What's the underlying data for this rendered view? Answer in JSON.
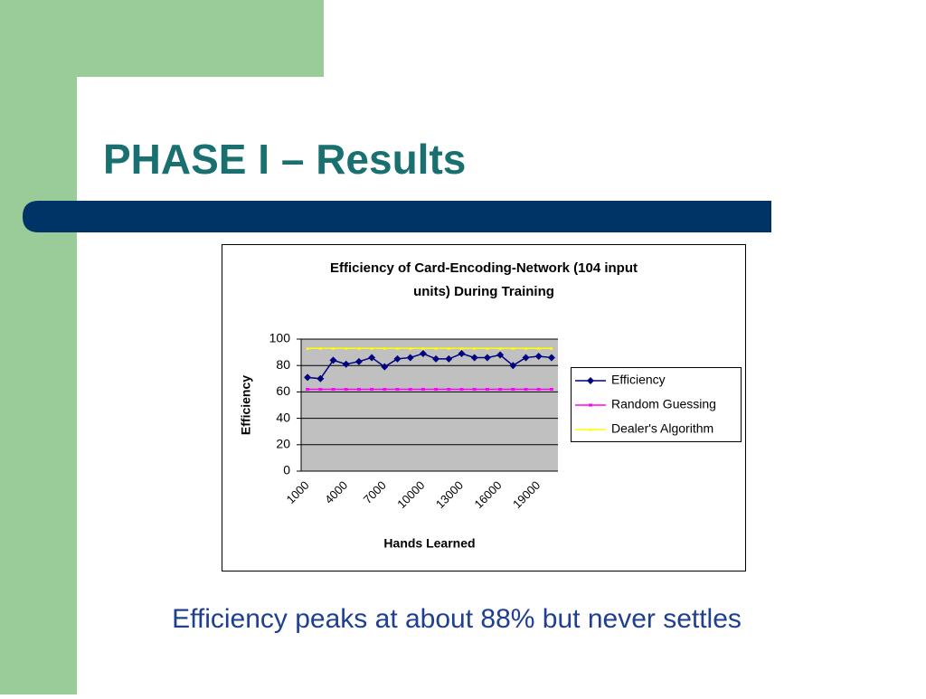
{
  "slide": {
    "title": "PHASE I – Results",
    "caption": "Efficiency peaks at about 88% but never settles"
  },
  "chart_data": {
    "type": "line",
    "title": [
      "Efficiency of Card-Encoding-Network (104 input",
      "units) During Training"
    ],
    "x_label": "Hands Learned",
    "y_label": "Efficiency",
    "categories": [
      "1000",
      null,
      null,
      "4000",
      null,
      null,
      "7000",
      null,
      null,
      "10000",
      null,
      null,
      "13000",
      null,
      null,
      "16000",
      null,
      null,
      "19000",
      null
    ],
    "series": [
      {
        "name": "Efficiency",
        "color": "#000080",
        "marker": "diamond",
        "values": [
          71,
          70,
          84,
          81,
          83,
          86,
          79,
          85,
          86,
          89,
          85,
          85,
          89,
          86,
          86,
          88,
          80,
          86,
          87,
          86
        ]
      },
      {
        "name": "Random Guessing",
        "color": "#ff00ff",
        "marker": "square",
        "values": [
          62,
          62,
          62,
          62,
          62,
          62,
          62,
          62,
          62,
          62,
          62,
          62,
          62,
          62,
          62,
          62,
          62,
          62,
          62,
          62
        ]
      },
      {
        "name": "Dealer's Algorithm",
        "color": "#ffff00",
        "marker": "triangle",
        "values": [
          93,
          93,
          93,
          93,
          93,
          93,
          93,
          93,
          93,
          93,
          93,
          93,
          93,
          93,
          93,
          93,
          93,
          93,
          93,
          93
        ]
      }
    ],
    "ylim": [
      0,
      100
    ],
    "yticks": [
      0,
      20,
      40,
      60,
      80,
      100
    ],
    "grid": true,
    "legend": "right"
  }
}
